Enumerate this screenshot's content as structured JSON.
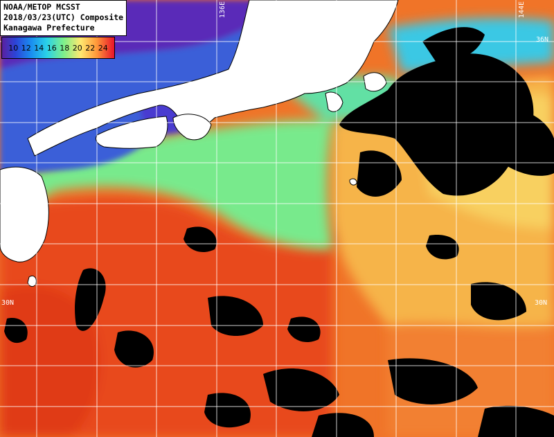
{
  "header": {
    "line1": "NOAA/METOP MCSST",
    "line2": "2018/03/23(UTC) Composite",
    "line3": "Kanagawa Prefecture"
  },
  "legend": {
    "text": "10 12 14 16 18 20 22 24",
    "colors": [
      "#5a20a0",
      "#2c44d8",
      "#1a8ef0",
      "#2ad2e8",
      "#7ef08a",
      "#ffe870",
      "#ff9a3a",
      "#e8142a"
    ]
  },
  "grid_labels": {
    "lon_136": "136E",
    "lon_144": "144E",
    "lat_36": "36N",
    "lat_30_left": "30N",
    "lat_30_right": "30N"
  },
  "colors": {
    "land": "#ffffff",
    "cloud": "#000000",
    "grid": "#ffffff",
    "warm_sea": "#f26a22",
    "cool_sea": "#78ec8c",
    "cold_sea": "#2a48d8"
  }
}
